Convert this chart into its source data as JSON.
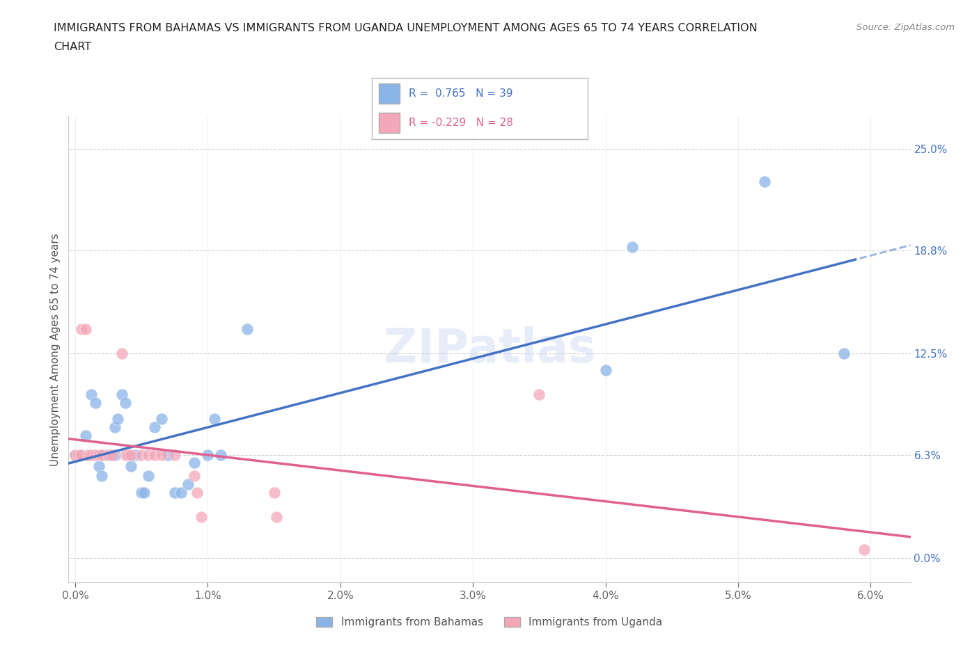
{
  "title_line1": "IMMIGRANTS FROM BAHAMAS VS IMMIGRANTS FROM UGANDA UNEMPLOYMENT AMONG AGES 65 TO 74 YEARS CORRELATION",
  "title_line2": "CHART",
  "source_text": "Source: ZipAtlas.com",
  "ylabel_label": "Unemployment Among Ages 65 to 74 years",
  "legend_label1": "Immigrants from Bahamas",
  "legend_label2": "Immigrants from Uganda",
  "r1": "0.765",
  "n1": "39",
  "r2": "-0.229",
  "n2": "28",
  "xlim": [
    -0.05,
    6.3
  ],
  "ylim": [
    -1.5,
    27.0
  ],
  "xtick_vals": [
    0.0,
    1.0,
    2.0,
    3.0,
    4.0,
    5.0,
    6.0
  ],
  "xtick_labels": [
    "0.0%",
    "1.0%",
    "2.0%",
    "3.0%",
    "4.0%",
    "5.0%",
    "6.0%"
  ],
  "ytick_vals": [
    0.0,
    6.3,
    12.5,
    18.8,
    25.0
  ],
  "ytick_labels": [
    "0.0%",
    "6.3%",
    "12.5%",
    "18.8%",
    "25.0%"
  ],
  "blue_color": "#8ab4e8",
  "pink_color": "#f4a7b9",
  "blue_line_color": "#4472c4",
  "pink_line_color": "#e06090",
  "grid_color": "#d0d0d0",
  "background_color": "#ffffff",
  "bahamas_x": [
    0.0,
    0.05,
    0.08,
    0.1,
    0.12,
    0.15,
    0.15,
    0.18,
    0.2,
    0.2,
    0.22,
    0.25,
    0.28,
    0.3,
    0.3,
    0.32,
    0.35,
    0.38,
    0.4,
    0.42,
    0.45,
    0.5,
    0.52,
    0.55,
    0.6,
    0.65,
    0.7,
    0.75,
    0.8,
    0.85,
    0.9,
    1.0,
    1.05,
    1.1,
    1.3,
    4.0,
    4.2,
    5.2,
    5.8
  ],
  "bahamas_y": [
    6.3,
    6.3,
    7.5,
    6.3,
    10.0,
    9.5,
    6.3,
    5.6,
    5.0,
    6.3,
    6.3,
    6.3,
    6.3,
    6.3,
    8.0,
    8.5,
    10.0,
    9.5,
    6.3,
    5.6,
    6.3,
    4.0,
    4.0,
    5.0,
    8.0,
    8.5,
    6.3,
    4.0,
    4.0,
    4.5,
    5.8,
    6.3,
    8.5,
    6.3,
    14.0,
    11.5,
    19.0,
    23.0,
    12.5
  ],
  "uganda_x": [
    0.0,
    0.02,
    0.04,
    0.05,
    0.08,
    0.1,
    0.12,
    0.15,
    0.18,
    0.2,
    0.25,
    0.28,
    0.35,
    0.38,
    0.4,
    0.42,
    0.5,
    0.55,
    0.6,
    0.65,
    0.75,
    0.9,
    0.92,
    0.95,
    1.5,
    1.52,
    3.5,
    5.95
  ],
  "uganda_y": [
    6.3,
    6.3,
    6.3,
    14.0,
    14.0,
    6.3,
    6.3,
    6.3,
    6.3,
    6.3,
    6.3,
    6.3,
    12.5,
    6.3,
    6.3,
    6.3,
    6.3,
    6.3,
    6.3,
    6.3,
    6.3,
    5.0,
    4.0,
    2.5,
    4.0,
    2.5,
    10.0,
    0.5
  ]
}
